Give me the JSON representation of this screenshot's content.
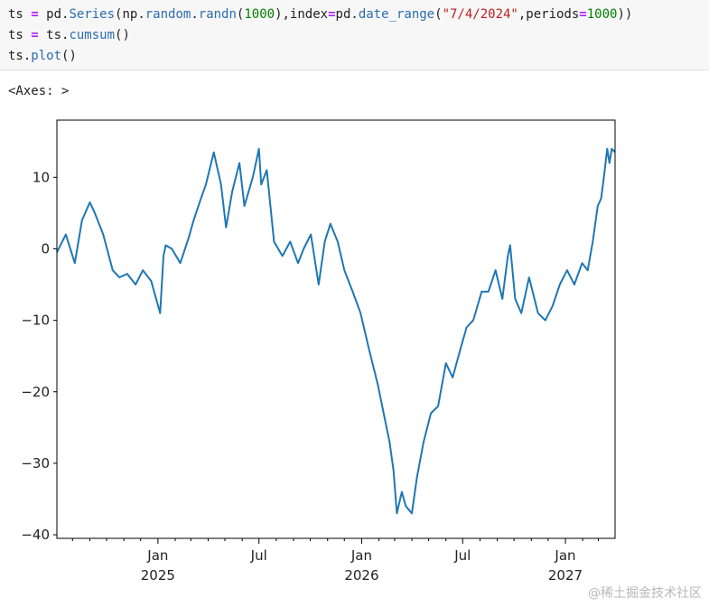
{
  "notebook": {
    "code_lines": [
      [
        {
          "t": "ts ",
          "c": "plain"
        },
        {
          "t": "=",
          "c": "op"
        },
        {
          "t": " pd.",
          "c": "plain"
        },
        {
          "t": "Series",
          "c": "fn"
        },
        {
          "t": "(np.",
          "c": "plain"
        },
        {
          "t": "random",
          "c": "fn"
        },
        {
          "t": ".",
          "c": "plain"
        },
        {
          "t": "randn",
          "c": "fn"
        },
        {
          "t": "(",
          "c": "plain"
        },
        {
          "t": "1000",
          "c": "num"
        },
        {
          "t": "),index",
          "c": "plain"
        },
        {
          "t": "=",
          "c": "op"
        },
        {
          "t": "pd.",
          "c": "plain"
        },
        {
          "t": "date_range",
          "c": "fn"
        },
        {
          "t": "(",
          "c": "plain"
        },
        {
          "t": "\"7/4/2024\"",
          "c": "str"
        },
        {
          "t": ",periods",
          "c": "plain"
        },
        {
          "t": "=",
          "c": "op"
        },
        {
          "t": "1000",
          "c": "num"
        },
        {
          "t": "))",
          "c": "plain"
        }
      ],
      [
        {
          "t": "ts ",
          "c": "plain"
        },
        {
          "t": "=",
          "c": "op"
        },
        {
          "t": " ts.",
          "c": "plain"
        },
        {
          "t": "cumsum",
          "c": "fn"
        },
        {
          "t": "()",
          "c": "plain"
        }
      ],
      [
        {
          "t": "ts.",
          "c": "plain"
        },
        {
          "t": "plot",
          "c": "fn"
        },
        {
          "t": "()",
          "c": "plain"
        }
      ]
    ],
    "output_repr": "<Axes: >"
  },
  "watermark": "@稀土掘金技术社区",
  "colors": {
    "line": "#1f77b4",
    "axes": "#000000",
    "text": "#222222"
  },
  "chart_data": {
    "type": "line",
    "title": "",
    "xlabel": "",
    "ylabel": "",
    "grid": false,
    "legend": "none",
    "x_start": "2024-07-04",
    "x_end": "2027-03-31",
    "x_freq": "D",
    "n_points": 1000,
    "ylim": [
      -40.5,
      18
    ],
    "yticks": [
      -40,
      -30,
      -20,
      -10,
      0,
      10
    ],
    "ytick_labels": [
      "−40",
      "−30",
      "−20",
      "−10",
      "0",
      "10"
    ],
    "xticks_major": [
      {
        "date": "2025-01-01",
        "label": "Jan",
        "year": "2025"
      },
      {
        "date": "2025-07-01",
        "label": "Jul",
        "year": ""
      },
      {
        "date": "2026-01-01",
        "label": "Jan",
        "year": "2026"
      },
      {
        "date": "2026-07-01",
        "label": "Jul",
        "year": ""
      },
      {
        "date": "2027-01-01",
        "label": "Jan",
        "year": "2027"
      }
    ],
    "xticks_minor": [
      "2024-08-01",
      "2024-09-01",
      "2024-10-01",
      "2024-11-01",
      "2024-12-01",
      "2025-02-01",
      "2025-03-01",
      "2025-04-01",
      "2025-05-01",
      "2025-06-01",
      "2025-08-01",
      "2025-09-01",
      "2025-10-01",
      "2025-11-01",
      "2025-12-01",
      "2026-02-01",
      "2026-03-01",
      "2026-04-01",
      "2026-05-01",
      "2026-06-01",
      "2026-08-01",
      "2026-09-01",
      "2026-10-01",
      "2026-11-01",
      "2026-12-01",
      "2027-02-01",
      "2027-03-01"
    ],
    "series": [
      {
        "dates": [
          "2024-07-04",
          "2024-07-20",
          "2024-08-05",
          "2024-08-18",
          "2024-09-01",
          "2024-09-10",
          "2024-09-25",
          "2024-10-12",
          "2024-10-24",
          "2024-11-07",
          "2024-11-22",
          "2024-12-05",
          "2024-12-20",
          "2025-01-05",
          "2025-01-11",
          "2025-01-15",
          "2025-01-26",
          "2025-02-10",
          "2025-02-25",
          "2025-03-06",
          "2025-03-19",
          "2025-03-28",
          "2025-04-11",
          "2025-04-24",
          "2025-05-03",
          "2025-05-14",
          "2025-05-27",
          "2025-06-05",
          "2025-06-20",
          "2025-07-01",
          "2025-07-05",
          "2025-07-15",
          "2025-07-28",
          "2025-08-12",
          "2025-08-26",
          "2025-09-09",
          "2025-09-19",
          "2025-10-02",
          "2025-10-16",
          "2025-10-27",
          "2025-11-06",
          "2025-11-19",
          "2025-12-01",
          "2025-12-16",
          "2025-12-30",
          "2026-01-14",
          "2026-01-30",
          "2026-02-12",
          "2026-02-20",
          "2026-02-27",
          "2026-03-05",
          "2026-03-14",
          "2026-03-21",
          "2026-04-01",
          "2026-04-10",
          "2026-04-22",
          "2026-05-05",
          "2026-05-18",
          "2026-06-01",
          "2026-06-13",
          "2026-06-27",
          "2026-07-08",
          "2026-07-20",
          "2026-08-04",
          "2026-08-16",
          "2026-08-29",
          "2026-09-10",
          "2026-09-20",
          "2026-09-24",
          "2026-10-03",
          "2026-10-14",
          "2026-10-28",
          "2026-11-13",
          "2026-11-26",
          "2026-12-09",
          "2026-12-22",
          "2027-01-04",
          "2027-01-17",
          "2027-01-31",
          "2027-02-10",
          "2027-02-19",
          "2027-02-28",
          "2027-03-06",
          "2027-03-11",
          "2027-03-17",
          "2027-03-21",
          "2027-03-25",
          "2027-03-31"
        ],
        "values": [
          -0.5,
          2,
          -2,
          4,
          6.5,
          5,
          2,
          -3,
          -4,
          -3.5,
          -5,
          -3,
          -4.5,
          -9,
          -1,
          0.5,
          0,
          -2,
          1.5,
          4,
          7,
          9,
          13.5,
          9,
          3,
          8,
          12,
          6,
          10,
          14,
          9,
          11,
          1,
          -1,
          1,
          -2,
          0,
          2,
          -5,
          1,
          3.5,
          1,
          -3,
          -6,
          -9,
          -14,
          -19,
          -24,
          -27,
          -31,
          -37,
          -34,
          -36,
          -37,
          -32,
          -27,
          -23,
          -22,
          -16,
          -18,
          -14,
          -11,
          -10,
          -6,
          -6,
          -3,
          -7,
          -1,
          0.5,
          -7,
          -9,
          -4,
          -9,
          -10,
          -8,
          -5,
          -3,
          -5,
          -2,
          -3,
          1,
          6,
          7,
          10,
          14,
          12,
          14,
          13.5
        ]
      }
    ]
  }
}
